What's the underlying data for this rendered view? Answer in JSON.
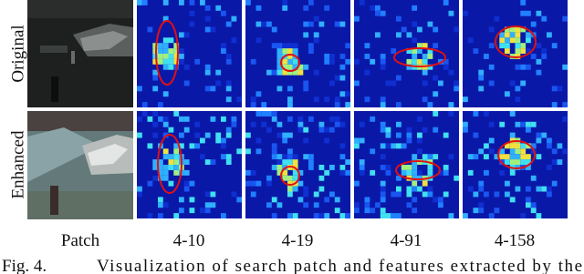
{
  "figure": {
    "row_labels": [
      "Original",
      "Enhanced"
    ],
    "column_labels": [
      "Patch",
      "4-10",
      "4-19",
      "4-91",
      "4-158"
    ],
    "caption": {
      "label": "Fig. 4.",
      "text": "Visualization of search patch and features extracted by the"
    }
  }
}
